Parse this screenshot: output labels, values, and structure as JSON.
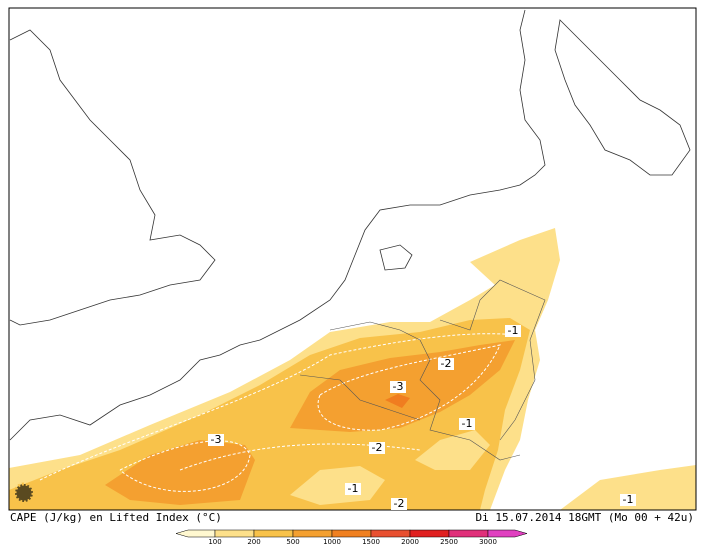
{
  "map": {
    "contour_labels": [
      "-1",
      "-2",
      "-3",
      "-3",
      "-2",
      "-1",
      "-1",
      "-2",
      "-1"
    ],
    "footer": {
      "left": "CAPE (J/kg) en Lifted Index (°C)",
      "right": "Di 15.07.2014 18GMT (Mo 00 + 42u)"
    },
    "legend": {
      "ticks": [
        100,
        200,
        500,
        1000,
        1500,
        2000,
        2500,
        3000
      ]
    }
  }
}
